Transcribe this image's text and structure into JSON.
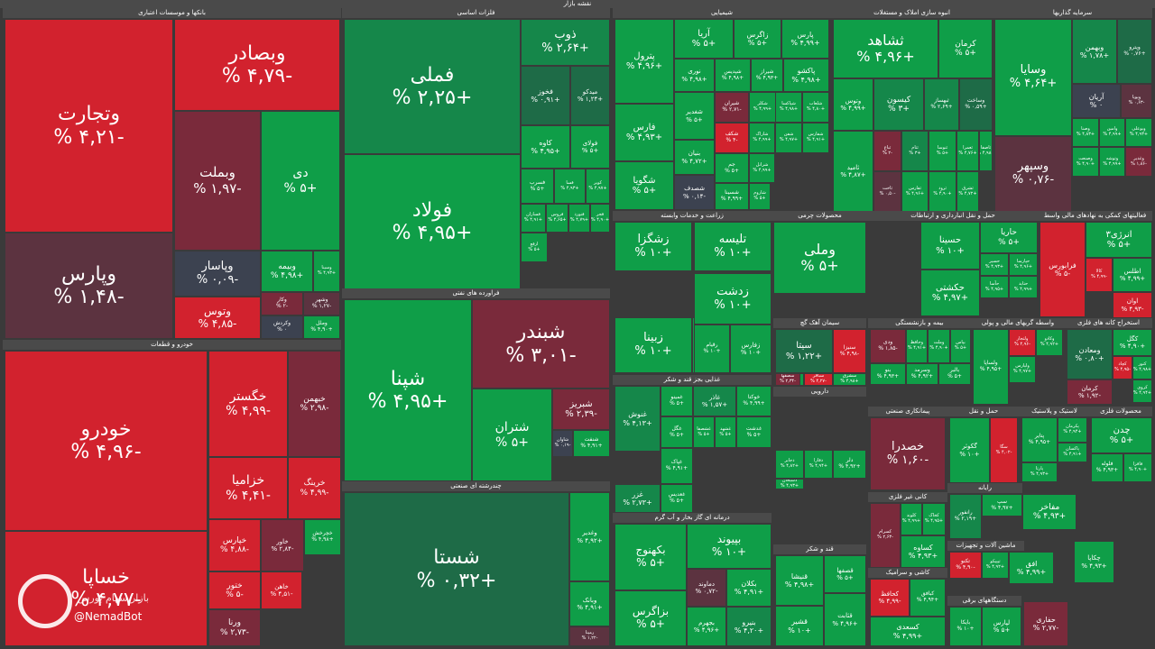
{
  "app": {
    "title": "نقشه بازار",
    "watermark": "@NemadBot",
    "watermark_sub": "بازار سهام بورس"
  },
  "colors": {
    "background": "#3a3a3a",
    "pos_max": "#0f9e48",
    "pos_mid": "#1e6b47",
    "neutral": "#3c4250",
    "neg_mid": "#7a2a3b",
    "neg_max": "#d2222e"
  },
  "chart_data": {
    "type": "treemap",
    "title": "نقشه بازار",
    "value_unit": "% change",
    "sectors": [
      {
        "name": "بانکها و موسسات اعتباری",
        "tiles": [
          {
            "symbol": "وتجارت",
            "change": -4.21
          },
          {
            "symbol": "وبصادر",
            "change": -4.79
          },
          {
            "symbol": "وبملت",
            "change": -1.97
          },
          {
            "symbol": "دی",
            "change": 5.0
          },
          {
            "symbol": "وپارس",
            "change": -1.48
          },
          {
            "symbol": "وپاسار",
            "change": -0.09
          },
          {
            "symbol": "وبیمه",
            "change": 4.98
          },
          {
            "symbol": "وسینا",
            "change": 4.93
          },
          {
            "symbol": "وتوس",
            "change": -4.85
          },
          {
            "symbol": "وکار",
            "change": -2.0
          },
          {
            "symbol": "وکردش",
            "change": 0.0
          },
          {
            "symbol": "وشهر",
            "change": -1.27
          },
          {
            "symbol": "وملل",
            "change": 4.9
          }
        ]
      },
      {
        "name": "خودرو و قطعات",
        "tiles": [
          {
            "symbol": "خودرو",
            "change": -4.96
          },
          {
            "symbol": "خگستر",
            "change": -4.99
          },
          {
            "symbol": "خبهمن",
            "change": -2.98
          },
          {
            "symbol": "خزامیا",
            "change": -4.41
          },
          {
            "symbol": "خرینگ",
            "change": -4.99
          },
          {
            "symbol": "خساپا",
            "change": -4.77
          },
          {
            "symbol": "خپارس",
            "change": -4.88
          },
          {
            "symbol": "خاور",
            "change": -2.84
          },
          {
            "symbol": "خچرخش",
            "change": 4.98
          },
          {
            "symbol": "ختور",
            "change": -5.0
          },
          {
            "symbol": "خاهن",
            "change": -4.51
          },
          {
            "symbol": "ورنا",
            "change": -2.73
          }
        ]
      },
      {
        "name": "فلزات اساسی",
        "tiles": [
          {
            "symbol": "فملی",
            "change": 2.25
          },
          {
            "symbol": "ذوب",
            "change": 2.64
          },
          {
            "symbol": "فخوز",
            "change": 0.91
          },
          {
            "symbol": "میدکو",
            "change": 1.24
          },
          {
            "symbol": "فولاد",
            "change": 4.95
          },
          {
            "symbol": "کاوه",
            "change": 4.95
          },
          {
            "symbol": "فولای",
            "change": 5.0
          },
          {
            "symbol": "فسرب",
            "change": 5.0
          },
          {
            "symbol": "فسا",
            "change": 4.93
          },
          {
            "symbol": "کویر",
            "change": 4.97
          },
          {
            "symbol": "فسازان",
            "change": 4.91
          },
          {
            "symbol": "فروس",
            "change": 4.65
          },
          {
            "symbol": "فنورد",
            "change": 4.79
          },
          {
            "symbol": "فجر",
            "change": 4.9
          },
          {
            "symbol": "ارفع",
            "change": 5.0
          }
        ]
      },
      {
        "name": "فراورده های نفتی",
        "tiles": [
          {
            "symbol": "شپنا",
            "change": 4.95
          },
          {
            "symbol": "شبندر",
            "change": -3.01
          },
          {
            "symbol": "شتران",
            "change": 5.0
          },
          {
            "symbol": "شبریز",
            "change": -2.39
          },
          {
            "symbol": "شنفت",
            "change": 4.91
          },
          {
            "symbol": "شاوان",
            "change": -0.19
          }
        ]
      },
      {
        "name": "چندرشته ای صنعتی",
        "tiles": [
          {
            "symbol": "شستا",
            "change": 0.32
          },
          {
            "symbol": "وغدیر",
            "change": 4.92
          },
          {
            "symbol": "وبانک",
            "change": 4.91
          },
          {
            "symbol": "رمپنا",
            "change": -1.22
          }
        ]
      },
      {
        "name": "شیمیایی",
        "tiles": [
          {
            "symbol": "پترول",
            "change": 4.96
          },
          {
            "symbol": "آریا",
            "change": 5.0
          },
          {
            "symbol": "زاگرس",
            "change": 5.0
          },
          {
            "symbol": "پارس",
            "change": 4.99
          },
          {
            "symbol": "نوری",
            "change": 4.98
          },
          {
            "symbol": "شپدیس",
            "change": 4.98
          },
          {
            "symbol": "شیراز",
            "change": 4.93
          },
          {
            "symbol": "پاکشو",
            "change": 4.98
          },
          {
            "symbol": "فارس",
            "change": 4.93
          },
          {
            "symbol": "شغدیر",
            "change": 5.0
          },
          {
            "symbol": "شیران",
            "change": -2.71
          },
          {
            "symbol": "شکلر",
            "change": 4.99
          },
          {
            "symbol": "شکف",
            "change": -4.0
          },
          {
            "symbol": "شگویا",
            "change": 5.0
          },
          {
            "symbol": "جم",
            "change": 5.0
          },
          {
            "symbol": "شاراک",
            "change": 4.99
          },
          {
            "symbol": "شفن",
            "change": 4.97
          },
          {
            "symbol": "شسینا",
            "change": 4.99
          },
          {
            "symbol": "شاروم",
            "change": 5.0
          },
          {
            "symbol": "شپاکسا",
            "change": 4.98
          },
          {
            "symbol": "بنیان",
            "change": 4.72
          },
          {
            "symbol": "شفارس",
            "change": 4.91
          },
          {
            "symbol": "شلعاب",
            "change": 4.8
          },
          {
            "symbol": "شرانل",
            "change": 4.99
          },
          {
            "symbol": "شصدف",
            "change": -0.14
          }
        ]
      },
      {
        "name": "انبوه سازی املاک و مستغلات",
        "tiles": [
          {
            "symbol": "ثشاهد",
            "change": 4.96
          },
          {
            "symbol": "کرمان",
            "change": 5.0
          },
          {
            "symbol": "وتوس",
            "change": 4.99
          },
          {
            "symbol": "کیسون",
            "change": 3.0
          },
          {
            "symbol": "ثبهساز",
            "change": 2.69
          },
          {
            "symbol": "وساخت",
            "change": 0.59
          },
          {
            "symbol": "ثامید",
            "change": 4.87
          },
          {
            "symbol": "ثباغ",
            "change": -2.0
          },
          {
            "symbol": "ثاخت",
            "change": -0.5
          },
          {
            "symbol": "ثتام",
            "change": 3.0
          },
          {
            "symbol": "ثنوسا",
            "change": 5.0
          },
          {
            "symbol": "ثعمرا",
            "change": 4.76
          },
          {
            "symbol": "ثرود",
            "change": 4.9
          },
          {
            "symbol": "ثشرق",
            "change": 4.72
          },
          {
            "symbol": "ثفارس",
            "change": 4.96
          },
          {
            "symbol": "ثاصفا",
            "change": 4.98
          }
        ]
      },
      {
        "name": "سرمایه گذاریها",
        "tiles": [
          {
            "symbol": "وسایا",
            "change": 4.64
          },
          {
            "symbol": "وبهمن",
            "change": 1.78
          },
          {
            "symbol": "وپترو",
            "change": 0.76
          },
          {
            "symbol": "آریان",
            "change": 0.0
          },
          {
            "symbol": "وپویا",
            "change": -0.63
          },
          {
            "symbol": "وسپهر",
            "change": -0.76
          },
          {
            "symbol": "وصنا",
            "change": 4.83
          },
          {
            "symbol": "وامین",
            "change": 4.99
          },
          {
            "symbol": "وبوعلی",
            "change": 4.93
          },
          {
            "symbol": "وصنعت",
            "change": 4.9
          },
          {
            "symbol": "وتوشه",
            "change": 4.99
          },
          {
            "symbol": "وغدیر",
            "change": -1.86
          }
        ]
      },
      {
        "name": "زراعت و خدمات وابسته",
        "tiles": [
          {
            "symbol": "زشگزا",
            "change": 10.0
          },
          {
            "symbol": "زبینا",
            "change": 10.0
          },
          {
            "symbol": "زماهان",
            "change": 10.0
          }
        ]
      },
      {
        "name": "محصولات چرمی",
        "tiles": [
          {
            "symbol": "تلیسه",
            "change": 10.0
          },
          {
            "symbol": "زدشت",
            "change": 10.0
          },
          {
            "symbol": "زفارس",
            "change": 10.0
          },
          {
            "symbol": "رقیام",
            "change": 10.0
          },
          {
            "symbol": "زکوثر",
            "change": 10.0
          }
        ]
      },
      {
        "name": "حمل و نقل انبارداری و ارتباطات",
        "tiles": [
          {
            "symbol": "وملی",
            "change": 5.0
          },
          {
            "symbol": "حسینا",
            "change": 10.0
          },
          {
            "symbol": "حکشتی",
            "change": 4.97
          },
          {
            "symbol": "حاریا",
            "change": 5.0
          },
          {
            "symbol": "حسیر",
            "change": 4.93
          },
          {
            "symbol": "حپارسا",
            "change": 4.96
          },
          {
            "symbol": "حآسا",
            "change": 4.95
          },
          {
            "symbol": "حتاید",
            "change": 4.99
          }
        ]
      },
      {
        "name": "فعالیتهای کمکی به نهادهای مالی واسط",
        "tiles": [
          {
            "symbol": "فرابورس",
            "change": -5.0
          },
          {
            "symbol": "انرژی۳",
            "change": 5.0
          },
          {
            "symbol": "کالا",
            "change": -4.99
          },
          {
            "symbol": "اطلس",
            "change": 4.99
          },
          {
            "symbol": "اوان",
            "change": -4.93
          }
        ]
      },
      {
        "name": "سیمان آهک گچ",
        "tiles": [
          {
            "symbol": "سیتا",
            "change": 1.22
          },
          {
            "symbol": "سنیزا",
            "change": -4.98
          },
          {
            "symbol": "سخزر",
            "change": 4.91
          },
          {
            "symbol": "سفار",
            "change": 4.96
          },
          {
            "symbol": "سصفها",
            "change": -2.34
          },
          {
            "symbol": "سباقر",
            "change": -4.27
          },
          {
            "symbol": "سهگمت",
            "change": -4.65
          },
          {
            "symbol": "سشرق",
            "change": 4.98
          }
        ]
      },
      {
        "name": "بیمه و بازنشستگی",
        "tiles": [
          {
            "symbol": "ودی",
            "change": -1.85
          },
          {
            "symbol": "وحافظ",
            "change": 4.91
          },
          {
            "symbol": "وملت",
            "change": 4.9
          },
          {
            "symbol": "بپاس",
            "change": 5.0
          },
          {
            "symbol": "بنو",
            "change": 4.93
          },
          {
            "symbol": "وسرمد",
            "change": 4.92
          },
          {
            "symbol": "بالبر",
            "change": 5.0
          }
        ]
      },
      {
        "name": "بانک و پولی",
        "tiles": [
          {
            "symbol": "وپاسار",
            "change": 4.93
          },
          {
            "symbol": "وسالت",
            "change": 4.91
          }
        ]
      },
      {
        "name": "واسطه گریهای مالی و پولی",
        "tiles": [
          {
            "symbol": "ولساپا",
            "change": 4.95
          },
          {
            "symbol": "ولتجار",
            "change": -4.96
          },
          {
            "symbol": "وکادو",
            "change": 4.92
          },
          {
            "symbol": "ولپارس",
            "change": 4.97
          }
        ]
      },
      {
        "name": "استخراج کانه های فلزی",
        "tiles": [
          {
            "symbol": "ومعادن",
            "change": 0.8
          },
          {
            "symbol": "کگل",
            "change": 4.9
          },
          {
            "symbol": "کچاد",
            "change": -4.95
          },
          {
            "symbol": "کنور",
            "change": 4.98
          },
          {
            "symbol": "کروی",
            "change": 4.94
          },
          {
            "symbol": "کرمان",
            "change": -1.92
          }
        ]
      },
      {
        "name": "غذایی بجز قند و شکر",
        "tiles": [
          {
            "symbol": "غنوش",
            "change": 4.13
          },
          {
            "symbol": "غمینو",
            "change": 5.0
          },
          {
            "symbol": "غاذر",
            "change": 1.57
          },
          {
            "symbol": "خوکتا",
            "change": 4.99
          },
          {
            "symbol": "غگل",
            "change": 5.0
          },
          {
            "symbol": "غشصفا",
            "change": 5.0
          },
          {
            "symbol": "غشهد",
            "change": 5.0
          },
          {
            "symbol": "غدشت",
            "change": 5.0
          },
          {
            "symbol": "غپاک",
            "change": 4.91
          },
          {
            "symbol": "غعدیس",
            "change": 5.0
          },
          {
            "symbol": "غزر",
            "change": 2.73
          }
        ]
      },
      {
        "name": "دارویی",
        "tiles": [
          {
            "symbol": "دجابر",
            "change": 4.82
          },
          {
            "symbol": "دفارا",
            "change": 4.94
          },
          {
            "symbol": "دلر",
            "change": 4.92
          },
          {
            "symbol": "دسبحان",
            "change": 4.93
          }
        ]
      },
      {
        "name": "پیمانکاری صنعتی",
        "tiles": [
          {
            "symbol": "خصدرا",
            "change": -1.6
          }
        ]
      },
      {
        "name": "حمل و نقل",
        "tiles": [
          {
            "symbol": "گکوثر",
            "change": 10.0
          },
          {
            "symbol": "سگا",
            "change": -4.02
          }
        ]
      },
      {
        "name": "لاستیک و پلاستیک",
        "tiles": [
          {
            "symbol": "پتایر",
            "change": 4.95
          },
          {
            "symbol": "پکرمان",
            "change": 4.94
          },
          {
            "symbol": "پاکسان",
            "change": 4.91
          },
          {
            "symbol": "پارتا",
            "change": 4.93
          }
        ]
      },
      {
        "name": "محصولات فلزی",
        "tiles": [
          {
            "symbol": "چدن",
            "change": 5.0
          },
          {
            "symbol": "فلوله",
            "change": 4.93
          },
          {
            "symbol": "فافزا",
            "change": 4.9
          }
        ]
      },
      {
        "name": "درمانه ای گاز بخار و آب گرم",
        "tiles": [
          {
            "symbol": "بکهنوج",
            "change": 5.0
          },
          {
            "symbol": "بپیوند",
            "change": 10.0
          },
          {
            "symbol": "بزاگرس",
            "change": 5.0
          },
          {
            "symbol": "دماوند",
            "change": -0.72
          },
          {
            "symbol": "بجهرم",
            "change": 4.96
          },
          {
            "symbol": "بکلان",
            "change": 4.91
          },
          {
            "symbol": "بنیرو",
            "change": 4.2
          }
        ]
      },
      {
        "name": "قند و شکر",
        "tiles": [
          {
            "symbol": "قنیشا",
            "change": 4.98
          },
          {
            "symbol": "قصفها",
            "change": 5.0
          },
          {
            "symbol": "قشیر",
            "change": 10.0
          },
          {
            "symbol": "قثابت",
            "change": 4.96
          }
        ]
      },
      {
        "name": "کانی غیر فلزی",
        "tiles": [
          {
            "symbol": "کسرام",
            "change": -2.63
          },
          {
            "symbol": "کلوند",
            "change": 4.99
          },
          {
            "symbol": "کخاک",
            "change": 4.95
          },
          {
            "symbol": "کساوه",
            "change": 4.93
          }
        ]
      },
      {
        "name": "کاشی و سرامیک",
        "tiles": [
          {
            "symbol": "کحافظ",
            "change": -4.99
          },
          {
            "symbol": "کبافق",
            "change": 4.94
          },
          {
            "symbol": "کسعدی",
            "change": 4.99
          }
        ]
      },
      {
        "name": "رایانه",
        "tiles": [
          {
            "symbol": "رانفور",
            "change": 2.19
          },
          {
            "symbol": "سپ",
            "change": 4.97
          },
          {
            "symbol": "مفاخر",
            "change": 4.93
          }
        ]
      },
      {
        "name": "ماشین آلات و تجهیزات",
        "tiles": [
          {
            "symbol": "تکنو",
            "change": -4.9
          },
          {
            "symbol": "تیپیکو",
            "change": 4.92
          },
          {
            "symbol": "افق",
            "change": 4.99
          },
          {
            "symbol": "چکاپا",
            "change": 4.93
          }
        ]
      },
      {
        "name": "دستگاههای برقی",
        "tiles": [
          {
            "symbol": "بایکا",
            "change": 10.0
          },
          {
            "symbol": "حفاری",
            "change": -2.77
          },
          {
            "symbol": "لپارس",
            "change": 5.0
          }
        ]
      }
    ]
  }
}
